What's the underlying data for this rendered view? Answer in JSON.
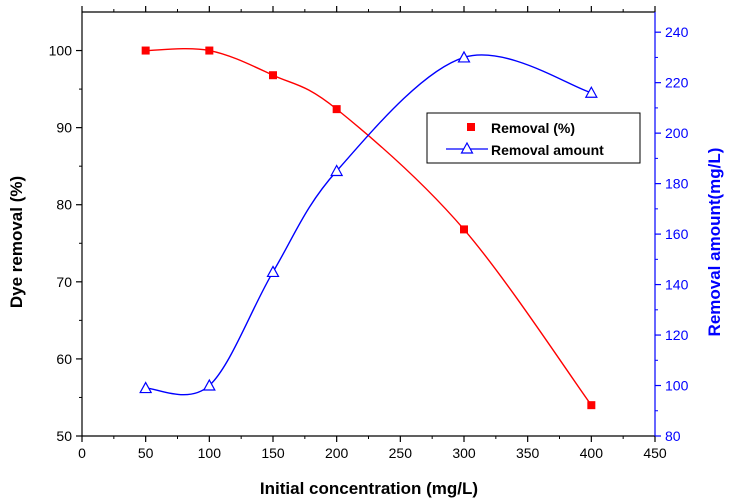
{
  "chart_data": {
    "type": "scatter",
    "title": "",
    "xlabel": "Initial concentration (mg/L)",
    "ylabel_left": "Dye removal (%)",
    "ylabel_right": "Removal amount(mg/L)",
    "xlim": [
      0,
      450
    ],
    "xticks": [
      0,
      50,
      100,
      150,
      200,
      250,
      300,
      350,
      400,
      450
    ],
    "ylim_left": [
      50,
      105
    ],
    "yticks_left": [
      50,
      60,
      70,
      80,
      90,
      100
    ],
    "ylim_right": [
      80,
      248
    ],
    "yticks_right": [
      80,
      100,
      120,
      140,
      160,
      180,
      200,
      220,
      240
    ],
    "grid": false,
    "legend_position": "upper-right",
    "series": [
      {
        "name": "Removal (%)",
        "axis": "left",
        "marker": "filled-square",
        "color": "#ff0000",
        "x": [
          50,
          100,
          150,
          200,
          300,
          400
        ],
        "y": [
          100,
          100,
          96.8,
          92.4,
          76.8,
          54
        ]
      },
      {
        "name": "Removal amount",
        "axis": "right",
        "marker": "open-triangle",
        "color": "#0000ff",
        "x": [
          50,
          100,
          150,
          200,
          300,
          400
        ],
        "y": [
          99,
          100,
          145,
          185,
          230,
          216
        ]
      }
    ]
  },
  "colors": {
    "left_axis": "#000000",
    "right_axis": "#0000ff",
    "series_removal": "#ff0000",
    "series_amount": "#0000ff"
  }
}
